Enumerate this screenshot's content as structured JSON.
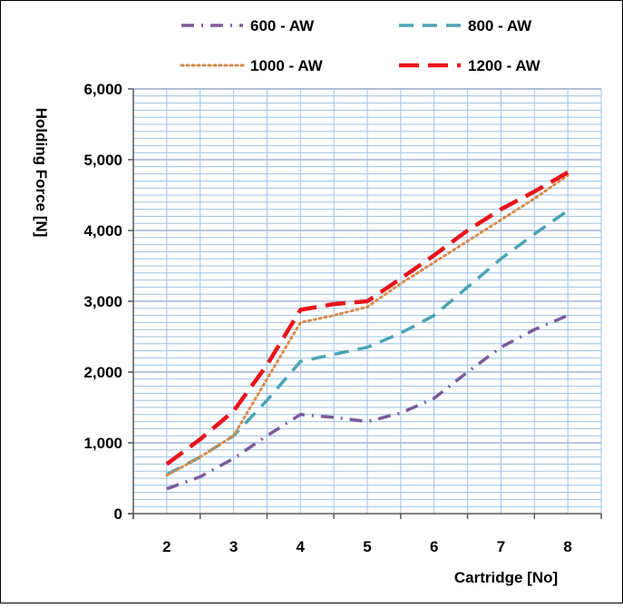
{
  "chart_data": {
    "type": "line",
    "title": "",
    "xlabel": "Cartridge [No]",
    "ylabel": "Holding Force [N]",
    "x_categories": [
      "2",
      "3",
      "4",
      "5",
      "6",
      "7",
      "8"
    ],
    "ylim": [
      0,
      6000
    ],
    "y_tick_labels": [
      "0",
      "1,000",
      "2,000",
      "3,000",
      "4,000",
      "5,000",
      "6,000"
    ],
    "grid": true,
    "legend_position": "top",
    "series": [
      {
        "name": "600 - AW",
        "color": "#7B5A9B",
        "style": "long dash-dot",
        "x": [
          2,
          2.5,
          3,
          3.5,
          4,
          4.5,
          5,
          5.5,
          6,
          6.5,
          7,
          7.5,
          8
        ],
        "values": [
          350,
          520,
          780,
          1100,
          1400,
          1360,
          1300,
          1420,
          1630,
          2000,
          2350,
          2600,
          2800
        ]
      },
      {
        "name": "800 - AW",
        "color": "#4BA3B5",
        "style": "dash",
        "x": [
          2,
          2.5,
          3,
          3.5,
          4,
          4.5,
          5,
          5.5,
          6,
          6.5,
          7,
          7.5,
          8
        ],
        "values": [
          550,
          800,
          1100,
          1600,
          2150,
          2250,
          2350,
          2550,
          2800,
          3200,
          3600,
          3950,
          4280
        ]
      },
      {
        "name": "1000 - AW",
        "color": "#D98A4A",
        "style": "dot",
        "x": [
          2,
          2.5,
          3,
          3.5,
          4,
          4.5,
          5,
          5.5,
          6,
          6.5,
          7,
          7.5,
          8
        ],
        "values": [
          540,
          800,
          1100,
          1900,
          2700,
          2800,
          2920,
          3250,
          3550,
          3850,
          4150,
          4450,
          4780
        ]
      },
      {
        "name": "1200 - AW",
        "color": "#E8141B",
        "style": "long dash",
        "x": [
          2,
          2.5,
          3,
          3.5,
          4,
          4.5,
          5,
          5.5,
          6,
          6.5,
          7,
          7.5,
          8
        ],
        "values": [
          700,
          1050,
          1450,
          2100,
          2880,
          2960,
          3000,
          3320,
          3650,
          4000,
          4300,
          4550,
          4820
        ]
      }
    ]
  }
}
